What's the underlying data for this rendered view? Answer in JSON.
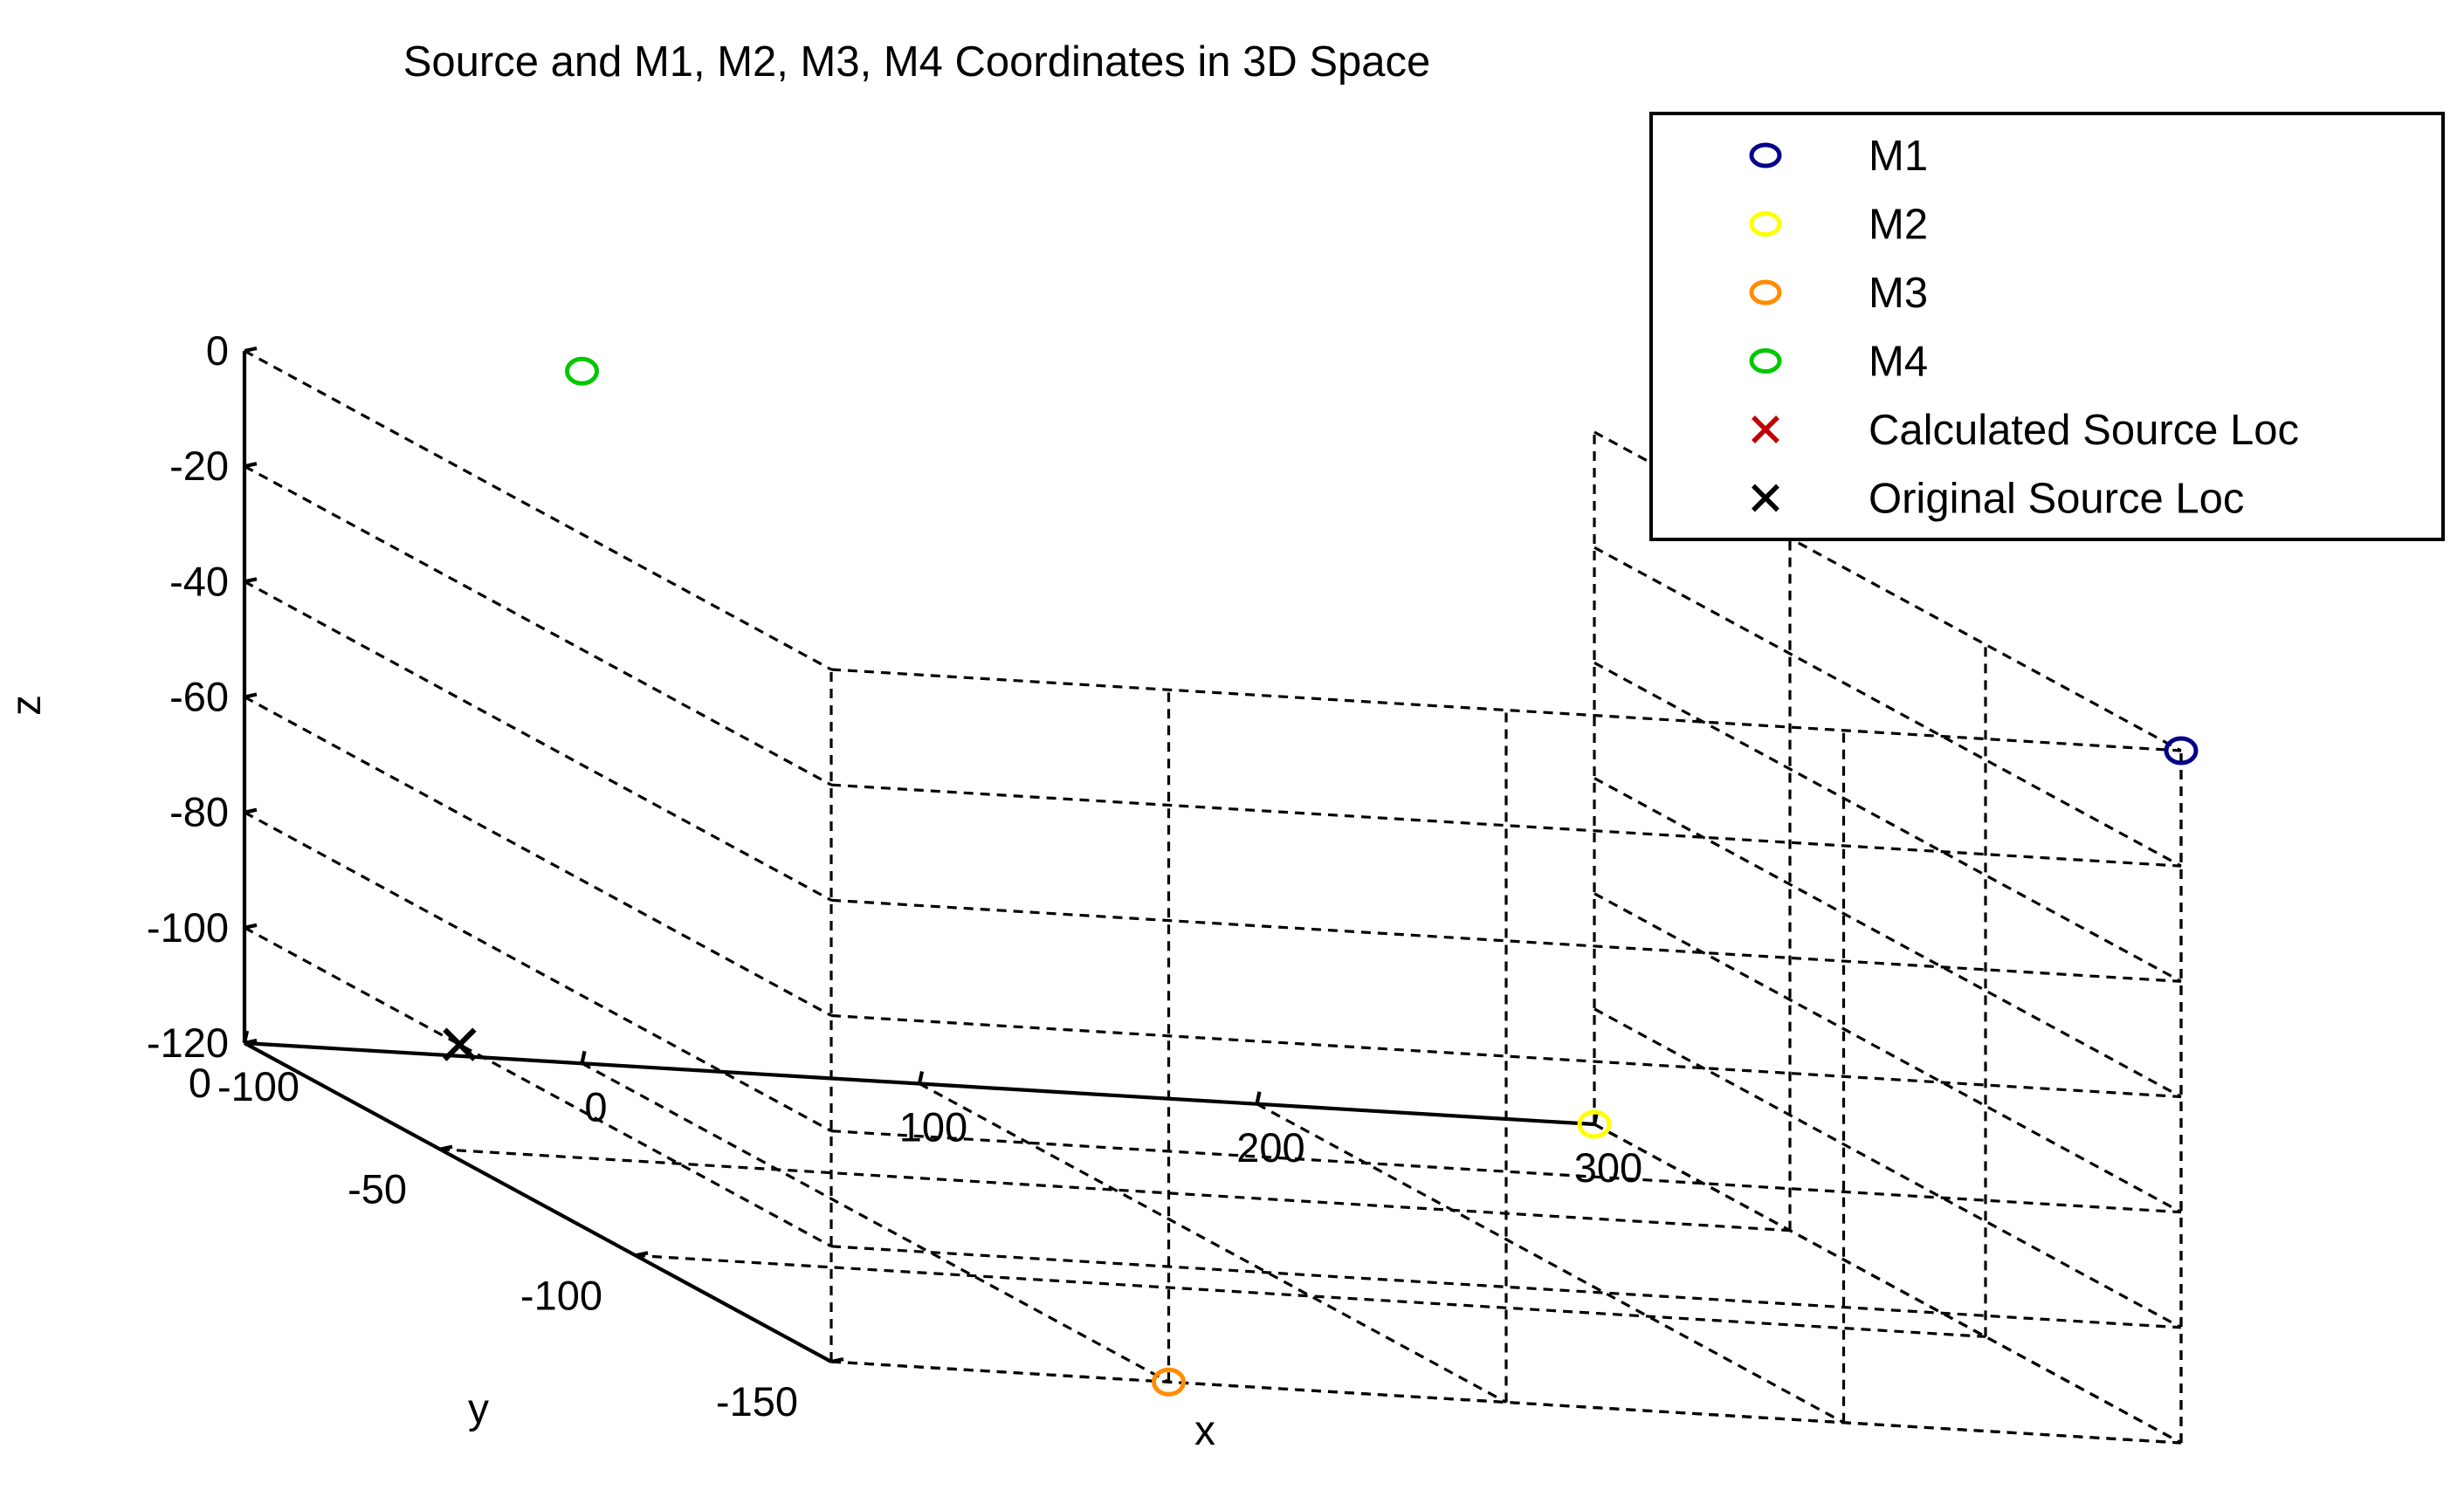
{
  "chart_data": {
    "type": "scatter",
    "projection": "3d",
    "title": "Source and M1, M2, M3, M4 Coordinates in 3D Space",
    "xlabel": "x",
    "ylabel": "y",
    "zlabel": "z",
    "xlim": [
      -100,
      300
    ],
    "ylim": [
      -150,
      0
    ],
    "zlim": [
      -120,
      0
    ],
    "xticks": [
      "-100",
      "0",
      "100",
      "200",
      "300"
    ],
    "yticks": [
      "0",
      "-50",
      "-100",
      "-150"
    ],
    "zticks": [
      "0",
      "-20",
      "-40",
      "-60",
      "-80",
      "-100",
      "-120"
    ],
    "grid": true,
    "grid_style": "dashed",
    "legend_position": "top-right, outside plot",
    "series": [
      {
        "name": "M1",
        "marker": "o",
        "color": "#00008b",
        "points": [
          {
            "x": 300,
            "y": -150,
            "z": 0
          }
        ]
      },
      {
        "name": "M2",
        "marker": "o",
        "color": "#ffff00",
        "points": [
          {
            "x": 300,
            "y": 0,
            "z": -120
          }
        ]
      },
      {
        "name": "M3",
        "marker": "o",
        "color": "#ff8c00",
        "points": [
          {
            "x": 0,
            "y": -150,
            "z": -120
          }
        ]
      },
      {
        "name": "M4",
        "marker": "o",
        "color": "#00c800",
        "points": [
          {
            "x": 0,
            "y": 0,
            "z": 0
          }
        ]
      },
      {
        "name": "Calculated Source Loc",
        "marker": "x",
        "color": "#c00000",
        "points": [
          {
            "x": -100,
            "y": -55,
            "z": -100
          }
        ]
      },
      {
        "name": "Original Source Loc",
        "marker": "x",
        "color": "#000000",
        "points": [
          {
            "x": -100,
            "y": -55,
            "z": -100
          }
        ]
      }
    ]
  }
}
